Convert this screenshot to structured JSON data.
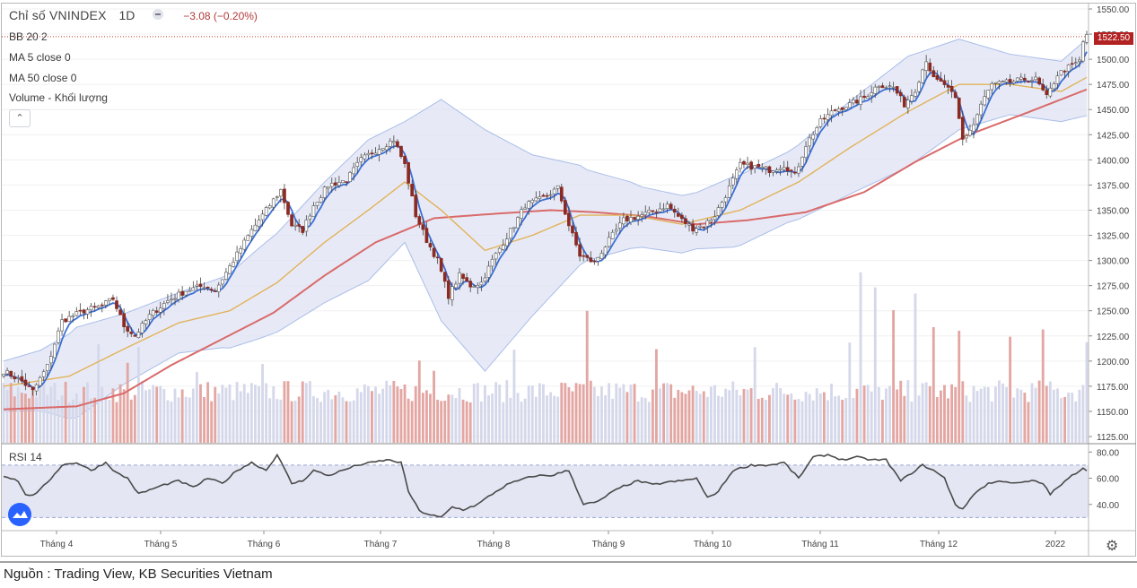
{
  "header": {
    "symbol": "Chỉ số VNINDEX",
    "timeframe": "1D",
    "change": "−3.08 (−0.20%)"
  },
  "legend": {
    "bb": "BB 20 2",
    "ma5": "MA 5 close 0",
    "ma50": "MA 50 close 0",
    "volume": "Volume - Khối lượng",
    "rsi": "RSI 14"
  },
  "last_price_label": "1522.50",
  "source": "Nguồn : Trading View, KB Securities Vietnam",
  "colors": {
    "up": "#ffffff",
    "down": "#8b2a22",
    "ma5": "#3b6fd6",
    "ma20_mid": "#e2b25a",
    "ma50": "#d96a6a",
    "bb_fill": "#dfe3f3",
    "bb_line": "#a9bde8",
    "vol_up": "#d5d8ea",
    "vol_down": "#e3a6a2",
    "rsi_line": "#4a4a4a",
    "rsi_band": "#e4e6f3"
  },
  "icons": {
    "collapse": "chevron-up-icon",
    "settings": "gear-icon",
    "logo": "tradingview-logo-icon"
  },
  "chart_data": {
    "type": "candlestick",
    "price_axis": {
      "min": 1125,
      "max": 1550,
      "ticks": [
        1550,
        1525,
        1500,
        1475,
        1450,
        1425,
        1400,
        1375,
        1350,
        1325,
        1300,
        1275,
        1250,
        1225,
        1200,
        1175,
        1150,
        1125
      ]
    },
    "rsi_axis": {
      "ticks": [
        80,
        60,
        40
      ],
      "band": [
        30,
        70
      ]
    },
    "x_labels": [
      "Tháng 4",
      "Tháng 5",
      "Tháng 6",
      "Tháng 7",
      "Tháng 8",
      "Tháng 9",
      "Tháng 10",
      "Tháng 11",
      "Tháng 12",
      "2022"
    ],
    "close_anchors": [
      [
        0,
        1190
      ],
      [
        5,
        1180
      ],
      [
        8,
        1170
      ],
      [
        12,
        1195
      ],
      [
        16,
        1240
      ],
      [
        22,
        1250
      ],
      [
        27,
        1255
      ],
      [
        30,
        1262
      ],
      [
        33,
        1235
      ],
      [
        36,
        1225
      ],
      [
        40,
        1245
      ],
      [
        45,
        1260
      ],
      [
        50,
        1270
      ],
      [
        55,
        1275
      ],
      [
        58,
        1270
      ],
      [
        63,
        1300
      ],
      [
        68,
        1330
      ],
      [
        73,
        1355
      ],
      [
        76,
        1370
      ],
      [
        79,
        1335
      ],
      [
        82,
        1330
      ],
      [
        85,
        1355
      ],
      [
        89,
        1375
      ],
      [
        94,
        1380
      ],
      [
        98,
        1400
      ],
      [
        103,
        1412
      ],
      [
        107,
        1420
      ],
      [
        110,
        1395
      ],
      [
        113,
        1345
      ],
      [
        116,
        1320
      ],
      [
        119,
        1300
      ],
      [
        122,
        1265
      ],
      [
        125,
        1285
      ],
      [
        128,
        1275
      ],
      [
        131,
        1278
      ],
      [
        134,
        1300
      ],
      [
        137,
        1318
      ],
      [
        140,
        1335
      ],
      [
        143,
        1355
      ],
      [
        148,
        1362
      ],
      [
        152,
        1372
      ],
      [
        155,
        1335
      ],
      [
        158,
        1305
      ],
      [
        162,
        1298
      ],
      [
        166,
        1320
      ],
      [
        170,
        1340
      ],
      [
        175,
        1345
      ],
      [
        179,
        1350
      ],
      [
        182,
        1355
      ],
      [
        186,
        1340
      ],
      [
        189,
        1332
      ],
      [
        192,
        1335
      ],
      [
        195,
        1345
      ],
      [
        198,
        1365
      ],
      [
        202,
        1395
      ],
      [
        206,
        1393
      ],
      [
        210,
        1390
      ],
      [
        214,
        1395
      ],
      [
        217,
        1385
      ],
      [
        220,
        1415
      ],
      [
        224,
        1438
      ],
      [
        228,
        1450
      ],
      [
        232,
        1455
      ],
      [
        236,
        1462
      ],
      [
        240,
        1475
      ],
      [
        244,
        1472
      ],
      [
        247,
        1455
      ],
      [
        250,
        1470
      ],
      [
        253,
        1500
      ],
      [
        255,
        1480
      ],
      [
        258,
        1475
      ],
      [
        261,
        1460
      ],
      [
        263,
        1420
      ],
      [
        266,
        1435
      ],
      [
        268,
        1455
      ],
      [
        271,
        1475
      ],
      [
        274,
        1476
      ],
      [
        277,
        1478
      ],
      [
        280,
        1480
      ],
      [
        283,
        1480
      ],
      [
        286,
        1462
      ],
      [
        289,
        1485
      ],
      [
        292,
        1492
      ],
      [
        295,
        1498
      ],
      [
        296,
        1517
      ],
      [
        297,
        1525
      ]
    ],
    "ma50_anchors": [
      [
        0,
        1152
      ],
      [
        20,
        1155
      ],
      [
        33,
        1168
      ],
      [
        46,
        1196
      ],
      [
        60,
        1222
      ],
      [
        74,
        1248
      ],
      [
        88,
        1285
      ],
      [
        102,
        1318
      ],
      [
        118,
        1342
      ],
      [
        133,
        1346
      ],
      [
        150,
        1350
      ],
      [
        162,
        1348
      ],
      [
        176,
        1344
      ],
      [
        190,
        1336
      ],
      [
        204,
        1340
      ],
      [
        220,
        1348
      ],
      [
        236,
        1368
      ],
      [
        250,
        1398
      ],
      [
        264,
        1424
      ],
      [
        280,
        1446
      ],
      [
        297,
        1470
      ]
    ],
    "ma20_anchors": [
      [
        0,
        1175
      ],
      [
        18,
        1185
      ],
      [
        33,
        1212
      ],
      [
        48,
        1238
      ],
      [
        62,
        1250
      ],
      [
        75,
        1278
      ],
      [
        88,
        1318
      ],
      [
        100,
        1350
      ],
      [
        110,
        1378
      ],
      [
        120,
        1350
      ],
      [
        132,
        1310
      ],
      [
        145,
        1325
      ],
      [
        158,
        1345
      ],
      [
        172,
        1345
      ],
      [
        186,
        1336
      ],
      [
        202,
        1350
      ],
      [
        218,
        1378
      ],
      [
        232,
        1412
      ],
      [
        248,
        1448
      ],
      [
        262,
        1475
      ],
      [
        276,
        1475
      ],
      [
        290,
        1468
      ],
      [
        297,
        1482
      ]
    ],
    "bb_width_anchors": [
      [
        0,
        25
      ],
      [
        10,
        30
      ],
      [
        20,
        45
      ],
      [
        33,
        35
      ],
      [
        48,
        30
      ],
      [
        60,
        35
      ],
      [
        70,
        45
      ],
      [
        82,
        55
      ],
      [
        100,
        70
      ],
      [
        110,
        60
      ],
      [
        120,
        110
      ],
      [
        132,
        120
      ],
      [
        145,
        80
      ],
      [
        160,
        45
      ],
      [
        175,
        30
      ],
      [
        190,
        28
      ],
      [
        200,
        35
      ],
      [
        215,
        35
      ],
      [
        230,
        45
      ],
      [
        248,
        55
      ],
      [
        262,
        45
      ],
      [
        276,
        30
      ],
      [
        290,
        30
      ],
      [
        297,
        38
      ]
    ],
    "rsi_anchors": [
      [
        0,
        62
      ],
      [
        4,
        58
      ],
      [
        6,
        47
      ],
      [
        9,
        48
      ],
      [
        13,
        60
      ],
      [
        16,
        70
      ],
      [
        20,
        72
      ],
      [
        24,
        66
      ],
      [
        28,
        72
      ],
      [
        31,
        64
      ],
      [
        34,
        60
      ],
      [
        37,
        48
      ],
      [
        40,
        51
      ],
      [
        44,
        55
      ],
      [
        48,
        58
      ],
      [
        52,
        53
      ],
      [
        56,
        60
      ],
      [
        60,
        56
      ],
      [
        64,
        66
      ],
      [
        68,
        72
      ],
      [
        72,
        66
      ],
      [
        75,
        78
      ],
      [
        79,
        56
      ],
      [
        82,
        58
      ],
      [
        85,
        66
      ],
      [
        89,
        62
      ],
      [
        93,
        66
      ],
      [
        97,
        70
      ],
      [
        101,
        72
      ],
      [
        105,
        74
      ],
      [
        109,
        72
      ],
      [
        111,
        50
      ],
      [
        114,
        35
      ],
      [
        117,
        32
      ],
      [
        120,
        30
      ],
      [
        123,
        38
      ],
      [
        126,
        36
      ],
      [
        130,
        40
      ],
      [
        134,
        48
      ],
      [
        138,
        55
      ],
      [
        142,
        59
      ],
      [
        146,
        62
      ],
      [
        150,
        62
      ],
      [
        155,
        66
      ],
      [
        159,
        40
      ],
      [
        163,
        42
      ],
      [
        166,
        48
      ],
      [
        170,
        54
      ],
      [
        174,
        58
      ],
      [
        178,
        55
      ],
      [
        182,
        57
      ],
      [
        186,
        58
      ],
      [
        190,
        60
      ],
      [
        193,
        45
      ],
      [
        196,
        50
      ],
      [
        200,
        66
      ],
      [
        205,
        70
      ],
      [
        210,
        70
      ],
      [
        214,
        72
      ],
      [
        218,
        60
      ],
      [
        222,
        76
      ],
      [
        226,
        78
      ],
      [
        230,
        74
      ],
      [
        234,
        76
      ],
      [
        238,
        74
      ],
      [
        242,
        74
      ],
      [
        246,
        58
      ],
      [
        249,
        64
      ],
      [
        252,
        70
      ],
      [
        255,
        66
      ],
      [
        258,
        60
      ],
      [
        261,
        40
      ],
      [
        263,
        36
      ],
      [
        266,
        48
      ],
      [
        270,
        56
      ],
      [
        274,
        58
      ],
      [
        278,
        56
      ],
      [
        282,
        58
      ],
      [
        285,
        56
      ],
      [
        287,
        48
      ],
      [
        290,
        55
      ],
      [
        293,
        62
      ],
      [
        296,
        68
      ],
      [
        297,
        66
      ]
    ],
    "volume_spikes": [
      [
        26,
        1.6
      ],
      [
        34,
        1.4
      ],
      [
        37,
        1.7
      ],
      [
        53,
        1.3
      ],
      [
        71,
        1.3
      ],
      [
        114,
        1.5
      ],
      [
        118,
        1.4
      ],
      [
        140,
        1.7
      ],
      [
        160,
        2.3
      ],
      [
        179,
        1.6
      ],
      [
        206,
        1.8
      ],
      [
        232,
        2.0
      ],
      [
        235,
        3.2
      ],
      [
        239,
        2.6
      ],
      [
        244,
        2.2
      ],
      [
        250,
        3.5
      ],
      [
        255,
        2.2
      ],
      [
        262,
        2.1
      ],
      [
        276,
        2.0
      ],
      [
        285,
        2.4
      ],
      [
        297,
        1.7
      ]
    ],
    "volume_base": 1.0,
    "bars": 298
  }
}
